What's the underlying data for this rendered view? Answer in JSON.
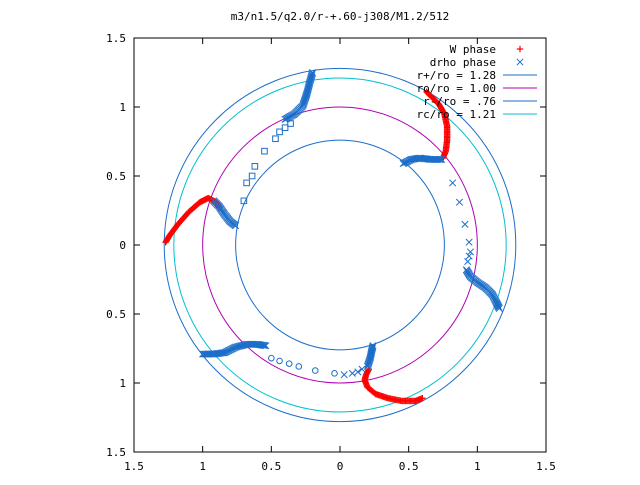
{
  "chart_data": {
    "type": "scatter",
    "title": "m3/n1.5/q2.0/r-+.60-j308/M1.2/512",
    "xlim": [
      -1.5,
      1.5
    ],
    "ylim": [
      -1.5,
      1.5
    ],
    "x_ticks": [
      "1.5",
      "1",
      "0.5",
      "0",
      "0.5",
      "1",
      "1.5"
    ],
    "y_ticks": [
      "1.5",
      "1",
      "0.5",
      "0",
      "0.5",
      "1",
      "1.5"
    ],
    "grid": false,
    "legend_position": "top-right",
    "circles": [
      {
        "name": "r+/ro = 1.28",
        "radius": 1.28,
        "color": "#1c6ec9"
      },
      {
        "name": "ro/ro = 1.00",
        "radius": 1.0,
        "color": "#b000b0"
      },
      {
        "name": "r-/ro = .76",
        "radius": 0.76,
        "color": "#1c6ec9"
      },
      {
        "name": "rc/ro = 1.21",
        "radius": 1.21,
        "color": "#00c0d0"
      }
    ],
    "series": [
      {
        "name": "W phase",
        "marker": "plus",
        "color": "#ff0000",
        "curves": [
          [
            [
              -1.27,
              0.02
            ],
            [
              -1.24,
              0.07
            ],
            [
              -1.18,
              0.15
            ],
            [
              -1.1,
              0.24
            ],
            [
              -1.02,
              0.31
            ],
            [
              -0.96,
              0.34
            ],
            [
              -0.9,
              0.31
            ],
            [
              -0.88,
              0.27
            ]
          ],
          [
            [
              0.63,
              1.11
            ],
            [
              0.67,
              1.07
            ],
            [
              0.72,
              1.02
            ],
            [
              0.76,
              0.95
            ],
            [
              0.78,
              0.86
            ],
            [
              0.78,
              0.76
            ],
            [
              0.77,
              0.68
            ],
            [
              0.75,
              0.63
            ]
          ],
          [
            [
              0.21,
              -0.9
            ],
            [
              0.19,
              -0.94
            ],
            [
              0.18,
              -0.98
            ],
            [
              0.2,
              -1.03
            ],
            [
              0.26,
              -1.08
            ],
            [
              0.35,
              -1.11
            ],
            [
              0.45,
              -1.13
            ],
            [
              0.55,
              -1.13
            ],
            [
              0.6,
              -1.11
            ]
          ]
        ]
      },
      {
        "name": "drho phase",
        "marker": "cross",
        "color": "#1c6ec9",
        "curves": [
          [
            [
              -0.92,
              0.32
            ],
            [
              -0.88,
              0.28
            ],
            [
              -0.84,
              0.22
            ],
            [
              -0.8,
              0.17
            ],
            [
              -0.76,
              0.14
            ]
          ],
          [
            [
              -0.2,
              1.25
            ],
            [
              -0.22,
              1.18
            ],
            [
              -0.24,
              1.1
            ],
            [
              -0.27,
              1.01
            ],
            [
              -0.33,
              0.95
            ],
            [
              -0.4,
              0.91
            ]
          ],
          [
            [
              0.46,
              0.59
            ],
            [
              0.52,
              0.62
            ],
            [
              0.58,
              0.63
            ],
            [
              0.66,
              0.62
            ],
            [
              0.74,
              0.62
            ]
          ],
          [
            [
              0.92,
              -0.18
            ],
            [
              0.95,
              -0.23
            ],
            [
              1.0,
              -0.27
            ],
            [
              1.06,
              -0.31
            ],
            [
              1.11,
              -0.36
            ],
            [
              1.16,
              -0.46
            ],
            [
              1.14,
              -0.42
            ]
          ],
          [
            [
              -1.0,
              -0.79
            ],
            [
              -0.92,
              -0.79
            ],
            [
              -0.84,
              -0.78
            ],
            [
              -0.76,
              -0.74
            ],
            [
              -0.68,
              -0.72
            ],
            [
              -0.6,
              -0.72
            ],
            [
              -0.54,
              -0.73
            ]
          ],
          [
            [
              0.24,
              -0.73
            ],
            [
              0.23,
              -0.77
            ],
            [
              0.22,
              -0.82
            ],
            [
              0.2,
              -0.88
            ]
          ]
        ],
        "scatter_points": [
          {
            "x": -0.68,
            "y": 0.45,
            "marker": "square"
          },
          {
            "x": -0.62,
            "y": 0.57,
            "marker": "square"
          },
          {
            "x": -0.55,
            "y": 0.68,
            "marker": "square"
          },
          {
            "x": -0.47,
            "y": 0.77,
            "marker": "square"
          },
          {
            "x": -0.44,
            "y": 0.82,
            "marker": "square"
          },
          {
            "x": -0.4,
            "y": 0.85,
            "marker": "square"
          },
          {
            "x": -0.36,
            "y": 0.88,
            "marker": "square"
          },
          {
            "x": -0.7,
            "y": 0.32,
            "marker": "square"
          },
          {
            "x": -0.64,
            "y": 0.5,
            "marker": "square"
          },
          {
            "x": -0.5,
            "y": -0.82,
            "marker": "circle"
          },
          {
            "x": -0.44,
            "y": -0.84,
            "marker": "circle"
          },
          {
            "x": -0.37,
            "y": -0.86,
            "marker": "circle"
          },
          {
            "x": -0.3,
            "y": -0.88,
            "marker": "circle"
          },
          {
            "x": -0.18,
            "y": -0.91,
            "marker": "circle"
          },
          {
            "x": -0.04,
            "y": -0.93,
            "marker": "circle"
          },
          {
            "x": 0.03,
            "y": -0.94,
            "marker": "cross"
          },
          {
            "x": 0.09,
            "y": -0.93,
            "marker": "cross"
          },
          {
            "x": 0.13,
            "y": -0.92,
            "marker": "cross"
          },
          {
            "x": 0.16,
            "y": -0.9,
            "marker": "cross"
          },
          {
            "x": 0.82,
            "y": 0.45,
            "marker": "cross"
          },
          {
            "x": 0.87,
            "y": 0.31,
            "marker": "cross"
          },
          {
            "x": 0.91,
            "y": 0.15,
            "marker": "cross"
          },
          {
            "x": 0.94,
            "y": 0.02,
            "marker": "cross"
          },
          {
            "x": 0.95,
            "y": -0.05,
            "marker": "cross"
          },
          {
            "x": 0.93,
            "y": -0.12,
            "marker": "cross"
          },
          {
            "x": 0.94,
            "y": -0.08,
            "marker": "cross"
          }
        ]
      }
    ]
  }
}
